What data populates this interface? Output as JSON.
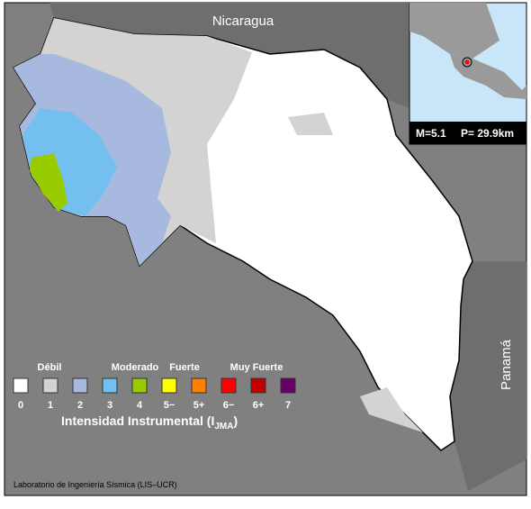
{
  "map": {
    "labels": {
      "north": "Nicaragua",
      "east": "Panamá"
    },
    "inset": {
      "magnitude": "M=5.1",
      "depth": "P= 29.9km"
    },
    "legend": {
      "groups": [
        "Débil",
        "Moderado",
        "Fuerte",
        "Muy Fuerte"
      ],
      "items": [
        {
          "label": "0",
          "color": "#ffffff"
        },
        {
          "label": "1",
          "color": "#d3d3d3"
        },
        {
          "label": "2",
          "color": "#a7b9de"
        },
        {
          "label": "3",
          "color": "#72bff0"
        },
        {
          "label": "4",
          "color": "#99cc00"
        },
        {
          "label": "5−",
          "color": "#ffff00"
        },
        {
          "label": "5+",
          "color": "#ff8000"
        },
        {
          "label": "6−",
          "color": "#ff0000"
        },
        {
          "label": "6+",
          "color": "#c00000"
        },
        {
          "label": "7",
          "color": "#660066"
        }
      ],
      "title": {
        "main": "Intensidad Instrumental (I",
        "sub": "JMA",
        "end": ")"
      }
    },
    "credit": "Laboratorio de Ingeniería Sísmica (LIS–UCR)"
  }
}
